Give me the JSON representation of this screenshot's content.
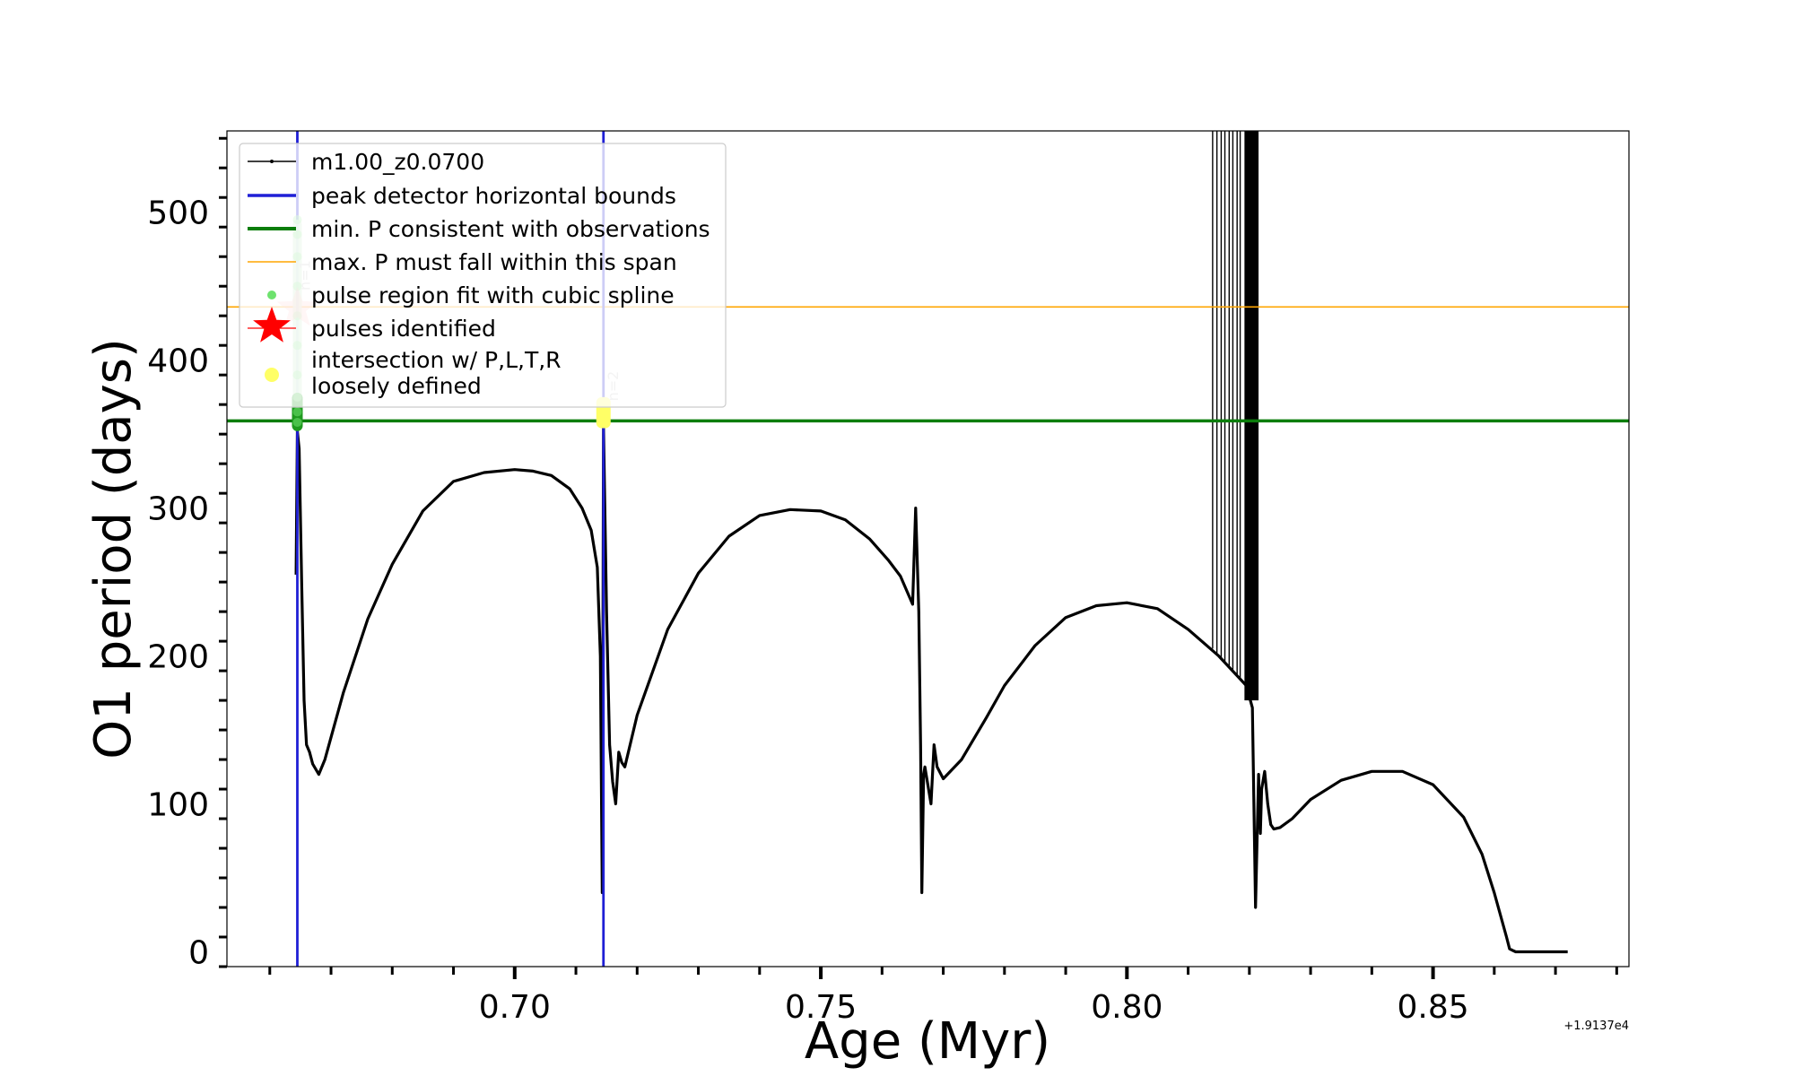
{
  "chart_data": {
    "type": "line",
    "title": "",
    "xlabel": "Age (Myr)",
    "ylabel": "O1 period (days)",
    "x_offset_label": "+1.9137e4",
    "xlim": [
      0.653,
      0.882
    ],
    "ylim": [
      -10,
      555
    ],
    "xticks": [
      0.7,
      0.75,
      0.8,
      0.85
    ],
    "xtick_labels": [
      "0.70",
      "0.75",
      "0.80",
      "0.85"
    ],
    "yticks": [
      0,
      100,
      200,
      300,
      400,
      500
    ],
    "ytick_labels": [
      "0",
      "100",
      "200",
      "300",
      "400",
      "500"
    ],
    "grid": false,
    "legend_position": "top-left",
    "series": [
      {
        "name": "m1.00_z0.0700",
        "color": "#000000",
        "x": [
          0.6643,
          0.6645,
          0.6648,
          0.6652,
          0.6656,
          0.666,
          0.6665,
          0.667,
          0.668,
          0.669,
          0.672,
          0.676,
          0.68,
          0.685,
          0.69,
          0.695,
          0.7,
          0.703,
          0.706,
          0.709,
          0.711,
          0.7125,
          0.7135,
          0.714,
          0.7143,
          0.7145,
          0.715,
          0.7155,
          0.716,
          0.7165,
          0.717,
          0.7175,
          0.718,
          0.72,
          0.725,
          0.73,
          0.735,
          0.74,
          0.745,
          0.75,
          0.754,
          0.758,
          0.761,
          0.763,
          0.765,
          0.7655,
          0.766,
          0.7663,
          0.7665,
          0.7668,
          0.767,
          0.768,
          0.7685,
          0.769,
          0.77,
          0.773,
          0.777,
          0.78,
          0.785,
          0.79,
          0.795,
          0.8,
          0.805,
          0.81,
          0.815,
          0.8195,
          0.8205,
          0.821,
          0.8215,
          0.8218,
          0.822,
          0.8225,
          0.823,
          0.8235,
          0.824,
          0.825,
          0.827,
          0.83,
          0.835,
          0.84,
          0.845,
          0.85,
          0.855,
          0.858,
          0.86,
          0.862,
          0.8625,
          0.863,
          0.8635,
          0.865,
          0.868,
          0.872
        ],
        "y": [
          255,
          352,
          340,
          250,
          170,
          140,
          135,
          127,
          120,
          130,
          175,
          225,
          262,
          298,
          318,
          324,
          326,
          325,
          322,
          313,
          300,
          285,
          260,
          200,
          40,
          355,
          230,
          140,
          115,
          100,
          135,
          128,
          125,
          160,
          218,
          256,
          281,
          295,
          299,
          298,
          292,
          279,
          265,
          254,
          235,
          300,
          230,
          140,
          40,
          120,
          125,
          100,
          140,
          125,
          117,
          130,
          158,
          180,
          207,
          226,
          234,
          236,
          232,
          218,
          200,
          180,
          165,
          30,
          120,
          80,
          110,
          122,
          100,
          86,
          83,
          84,
          90,
          103,
          116,
          122,
          122,
          113,
          91,
          66,
          40,
          10,
          2,
          1,
          0,
          0,
          0,
          0
        ]
      }
    ],
    "reference_lines": [
      {
        "name": "peak detector horizontal bounds",
        "orientation": "vertical",
        "x": [
          0.6645,
          0.7145
        ],
        "color": "#1f1fd6"
      },
      {
        "name": "min. P consistent with observations",
        "orientation": "horizontal",
        "y": 359,
        "color": "#0b7d0b"
      },
      {
        "name": "max. P must fall within this span",
        "orientation": "horizontal",
        "y": 436,
        "color": "#ffa500"
      }
    ],
    "pulse_region_fit": {
      "name": "pulse region fit with cubic spline",
      "color": "#6ee26e",
      "x": [
        0.6645,
        0.6645,
        0.6645,
        0.6645,
        0.6645,
        0.6645,
        0.6645,
        0.6645,
        0.6645,
        0.6645
      ],
      "y": [
        358,
        365,
        375,
        390,
        410,
        430,
        450,
        470,
        485,
        495
      ]
    },
    "pulses_identified": {
      "name": "pulses identified",
      "color": "#ff0000",
      "points": [
        {
          "x": 0.6645,
          "y": 435,
          "label": "n=1"
        }
      ]
    },
    "loosely_defined": {
      "name": "intersection w/ P,L,T,R loosely defined",
      "name_lines": [
        "intersection w/ P,L,T,R",
        "loosely defined"
      ],
      "color": "#ffff66",
      "points": [
        {
          "x": 0.7145,
          "y": 365,
          "label": "n=2"
        }
      ]
    },
    "noise_band": {
      "x_range": [
        0.814,
        0.8215
      ],
      "y_range": [
        170,
        555
      ]
    }
  }
}
